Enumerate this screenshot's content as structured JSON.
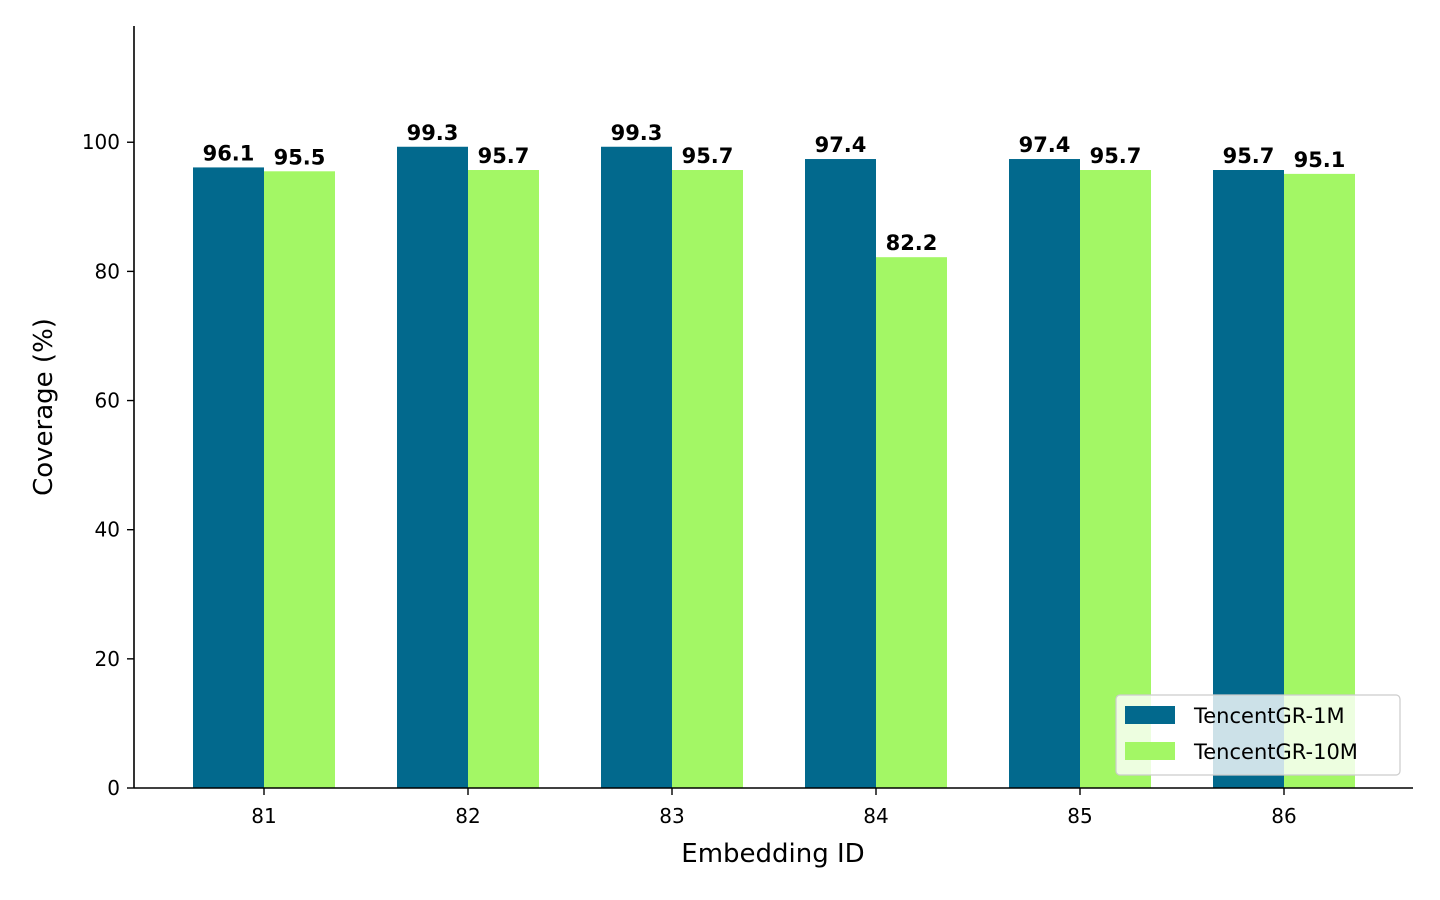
{
  "chart_data": {
    "type": "bar",
    "title": "",
    "xlabel": "Embedding ID",
    "ylabel": "Coverage (%)",
    "categories": [
      "81",
      "82",
      "83",
      "84",
      "85",
      "86"
    ],
    "series": [
      {
        "name": "TencentGR-1M",
        "color": "#02698d",
        "values": [
          96.1,
          99.3,
          99.3,
          97.4,
          97.4,
          95.7
        ]
      },
      {
        "name": "TencentGR-10M",
        "color": "#a3f765",
        "values": [
          95.5,
          95.7,
          95.7,
          82.2,
          95.7,
          95.1
        ]
      }
    ],
    "ylim": [
      0,
      118
    ],
    "yticks": [
      0,
      20,
      40,
      60,
      80,
      100
    ],
    "grid": false,
    "legend_position": "lower-right"
  }
}
